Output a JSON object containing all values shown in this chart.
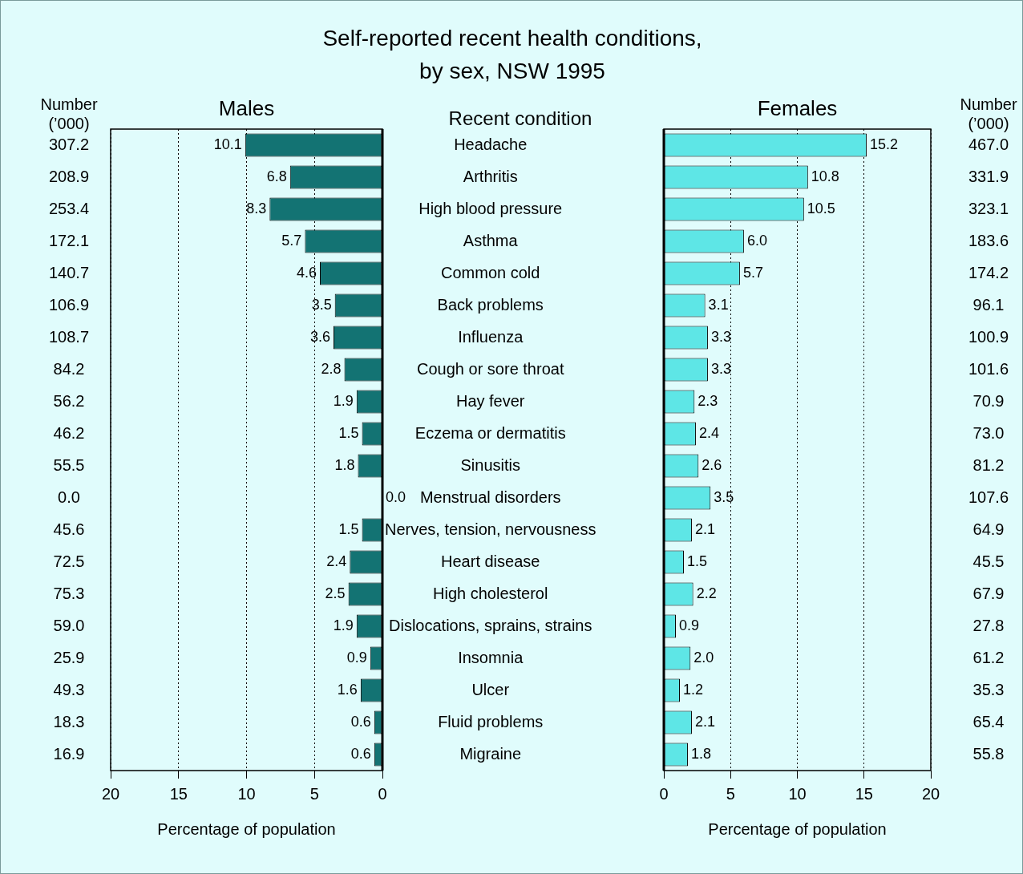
{
  "chart_data": [
    {
      "type": "bar",
      "orientation": "horizontal",
      "title": "Self-reported recent health conditions,\nby sex, NSW 1995",
      "subtitle": "Males",
      "ylabel": "Recent condition",
      "xlabel": "Percentage of population",
      "categories": [
        "Headache",
        "Arthritis",
        "High blood pressure",
        "Asthma",
        "Common cold",
        "Back problems",
        "Influenza",
        "Cough or sore throat",
        "Hay fever",
        "Eczema or dermatitis",
        "Sinusitis",
        "Menstrual disorders",
        "Nerves, tension, nervousness",
        "Heart disease",
        "High cholesterol",
        "Dislocations, sprains, strains",
        "Insomnia",
        "Ulcer",
        "Fluid problems",
        "Migraine"
      ],
      "values": [
        10.1,
        6.8,
        8.3,
        5.7,
        4.6,
        3.5,
        3.6,
        2.8,
        1.9,
        1.5,
        1.8,
        0.0,
        1.5,
        2.4,
        2.5,
        1.9,
        0.9,
        1.6,
        0.6,
        0.6
      ],
      "value_labels": [
        "10.1",
        "6.8",
        "8.3",
        "5.7",
        "4.6",
        "3.5",
        "3.6",
        "2.8",
        "1.9",
        "1.5",
        "1.8",
        "0.0",
        "1.5",
        "2.4",
        "2.5",
        "1.9",
        "0.9",
        "1.6",
        "0.6",
        "0.6"
      ],
      "color": "#137373",
      "xlim": [
        20,
        0
      ],
      "xticks": [
        20,
        15,
        10,
        5,
        0
      ],
      "grid": "x",
      "annotations": [
        "Number (’000)",
        "307.2",
        "208.9",
        "253.4",
        "172.1",
        "140.7",
        "106.9",
        "108.7",
        "84.2",
        "56.2",
        "46.2",
        "55.5",
        "0.0",
        "45.6",
        "72.5",
        "75.3",
        "59.0",
        "25.9",
        "49.3",
        "18.3",
        "16.9"
      ]
    },
    {
      "type": "bar",
      "orientation": "horizontal",
      "title": "Females",
      "xlabel": "Percentage of population",
      "categories": [
        null,
        null,
        null,
        null,
        null,
        null,
        null,
        null,
        null,
        null,
        null,
        null,
        null,
        null,
        null,
        null,
        null,
        null,
        null,
        null
      ],
      "values": [
        15.2,
        10.8,
        10.5,
        6.0,
        5.7,
        3.1,
        3.3,
        3.3,
        2.3,
        2.4,
        2.6,
        3.5,
        2.1,
        1.5,
        2.2,
        0.9,
        2.0,
        1.2,
        2.1,
        1.8
      ],
      "value_labels": [
        "15.2",
        "10.8",
        "10.5",
        "6.0",
        "5.7",
        "3.1",
        "3.3",
        "3.3",
        "2.3",
        "2.4",
        "2.6",
        "3.5",
        "2.1",
        "1.5",
        "2.2",
        "0.9",
        "2.0",
        "1.2",
        "2.1",
        "1.8"
      ],
      "color": "#5ee6e6",
      "xlim": [
        0,
        20
      ],
      "xticks": [
        0,
        5,
        10,
        15,
        20
      ],
      "grid": "x",
      "annotations": [
        "Number (’000)",
        "467.0",
        "331.9",
        "323.1",
        "183.6",
        "174.2",
        "96.1",
        "100.9",
        "101.6",
        "70.9",
        "73.0",
        "81.2",
        "107.6",
        "64.9",
        "45.5",
        "67.9",
        "27.8",
        "61.2",
        "35.3",
        "65.4",
        "55.8"
      ]
    }
  ]
}
